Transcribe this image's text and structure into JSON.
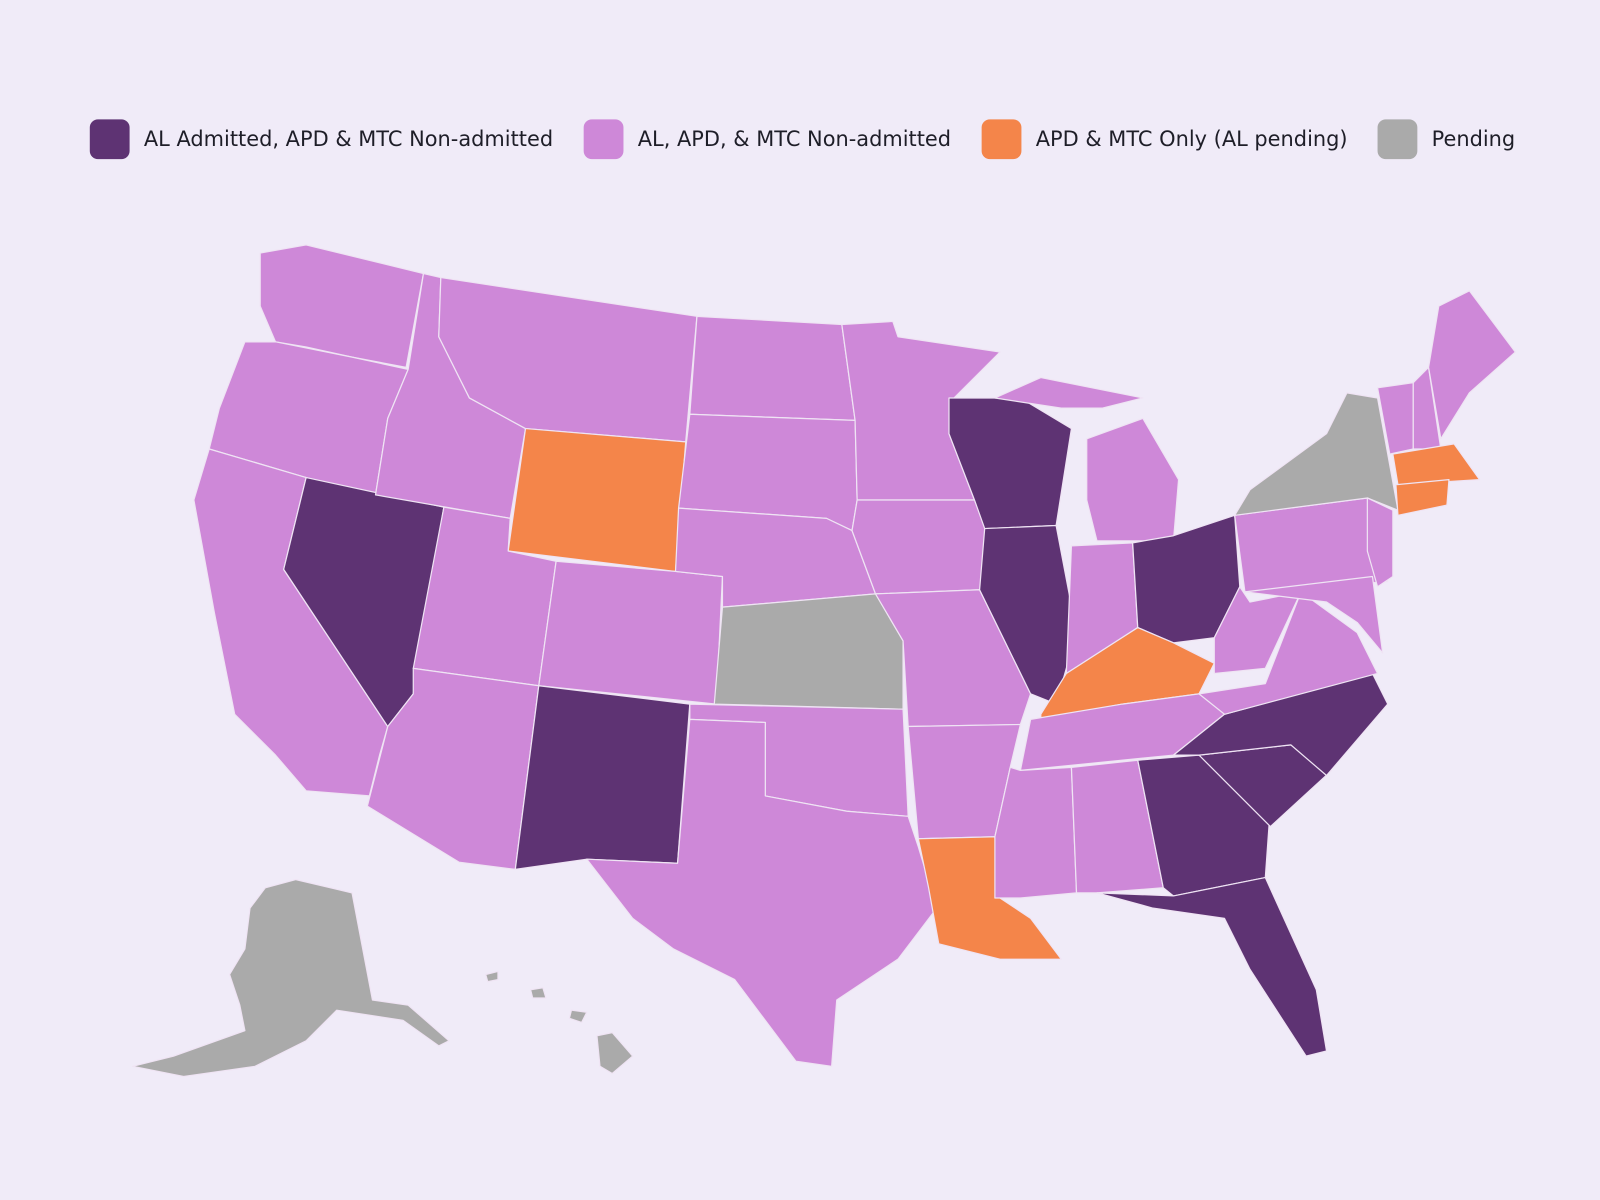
{
  "legend": {
    "items": [
      {
        "label": "AL Admitted, APD & MTC Non-admitted",
        "color": "#5e3373"
      },
      {
        "label": "AL, APD, & MTC Non-admitted",
        "color": "#ce88d8"
      },
      {
        "label": "APD & MTC Only (AL pending)",
        "color": "#f4854a"
      },
      {
        "label": "Pending",
        "color": "#aaaaaa"
      }
    ]
  }
}
